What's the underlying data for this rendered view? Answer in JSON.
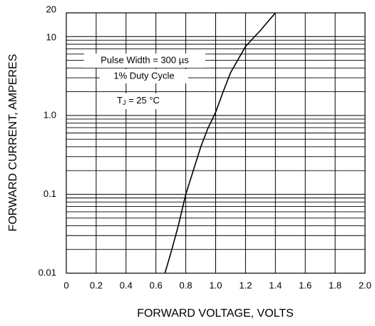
{
  "chart_data": {
    "type": "line",
    "xlabel": "FORWARD VOLTAGE, VOLTS",
    "ylabel": "FORWARD CURRENT, AMPERES",
    "annotations": [
      "Pulse Width = 300 µs",
      "1% Duty Cycle"
    ],
    "temperature_note": {
      "main": "T",
      "sub": "J",
      "rest": " = 25 °C"
    },
    "x": [
      0.66,
      0.7,
      0.75,
      0.8,
      0.85,
      0.9,
      0.95,
      1.0,
      1.05,
      1.1,
      1.2,
      1.3,
      1.4
    ],
    "series": [
      {
        "color": "#000000",
        "values": [
          0.01,
          0.018,
          0.04,
          0.1,
          0.2,
          0.4,
          0.7,
          1.1,
          2.0,
          3.5,
          7.5,
          12,
          20
        ]
      }
    ],
    "xlim": [
      0,
      2
    ],
    "xticks": [
      0,
      0.2,
      0.4,
      0.6,
      0.8,
      {
        "value": 1,
        "label": "1.0"
      },
      1.2,
      1.4,
      1.6,
      1.8,
      {
        "value": 2,
        "label": "2.0"
      }
    ],
    "ylim": [
      0.01,
      20
    ],
    "ylog": true,
    "yticks": [
      0.01,
      0.1,
      {
        "value": 1,
        "label": "1.0"
      },
      10,
      20
    ],
    "yminor": [
      0.02,
      0.03,
      0.04,
      0.05,
      0.06,
      0.07,
      0.08,
      0.09,
      0.2,
      0.3,
      0.4,
      0.5,
      0.6,
      0.7,
      0.8,
      0.9,
      2,
      3,
      4,
      5,
      6,
      7,
      8,
      9
    ],
    "grid": true
  }
}
